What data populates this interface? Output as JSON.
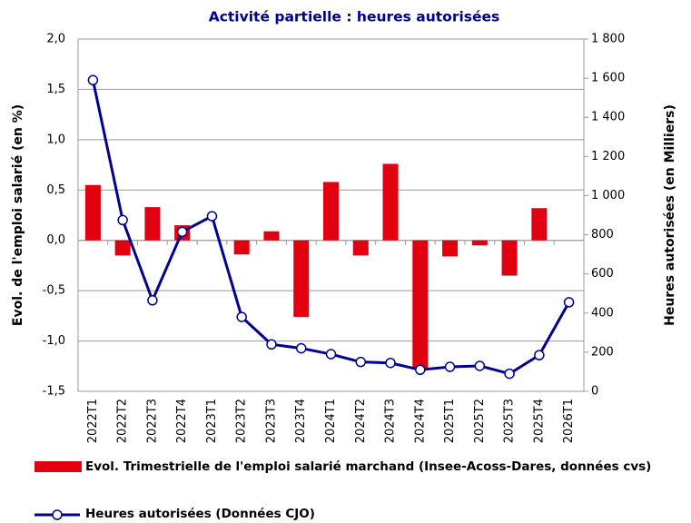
{
  "chart_data": {
    "type": "bar-line",
    "title": "Activité partielle : heures autorisées",
    "y_label": "Evol. de l'emploi salarié (en %)",
    "y2_label": "Heures autorisées (en Milliers)",
    "categories": [
      "2022T1",
      "2022T2",
      "2022T3",
      "2022T4",
      "2023T1",
      "2023T2",
      "2023T3",
      "2023T4",
      "2024T1",
      "2024T2",
      "2024T3",
      "2024T4",
      "2025T1",
      "2025T2",
      "2025T3",
      "2025T4",
      "2026T1"
    ],
    "ylim": [
      -1.5,
      2.0
    ],
    "yticks": [
      {
        "value": -1.5,
        "label": "-1,5"
      },
      {
        "value": -1.0,
        "label": "-1,0"
      },
      {
        "value": -0.5,
        "label": "-0,5"
      },
      {
        "value": 0,
        "label": "0,0"
      },
      {
        "value": 0.5,
        "label": "0,5"
      },
      {
        "value": 1.0,
        "label": "1,0"
      },
      {
        "value": 1.5,
        "label": "1,5"
      },
      {
        "value": 2.0,
        "label": "2,0"
      }
    ],
    "y2lim": [
      0,
      1800
    ],
    "y2ticks": [
      0,
      200,
      400,
      600,
      800,
      {
        "value": 1000,
        "label": "1 000"
      },
      {
        "value": 1200,
        "label": "1 200"
      },
      {
        "value": 1400,
        "label": "1 400"
      },
      {
        "value": 1600,
        "label": "1 600"
      },
      {
        "value": 1800,
        "label": "1 800"
      }
    ],
    "grid": true,
    "series": [
      {
        "name": "Evol. Trimestrielle de l'emploi salarié marchand (Insee-Acoss-Dares, données cvs)",
        "type": "bar",
        "color": "#e1000f",
        "values": [
          0.55,
          -0.15,
          0.33,
          0.15,
          null,
          -0.14,
          0.09,
          -0.76,
          0.58,
          -0.15,
          0.76,
          -1.28,
          -0.16,
          -0.05,
          -0.35,
          0.32,
          null
        ]
      },
      {
        "name": "Heures autorisées (Données CJO)",
        "type": "line",
        "axis": "y2",
        "color": "#000091",
        "values": [
          1590,
          875,
          465,
          815,
          895,
          380,
          240,
          220,
          190,
          150,
          145,
          110,
          125,
          130,
          90,
          185,
          455
        ]
      }
    ]
  }
}
